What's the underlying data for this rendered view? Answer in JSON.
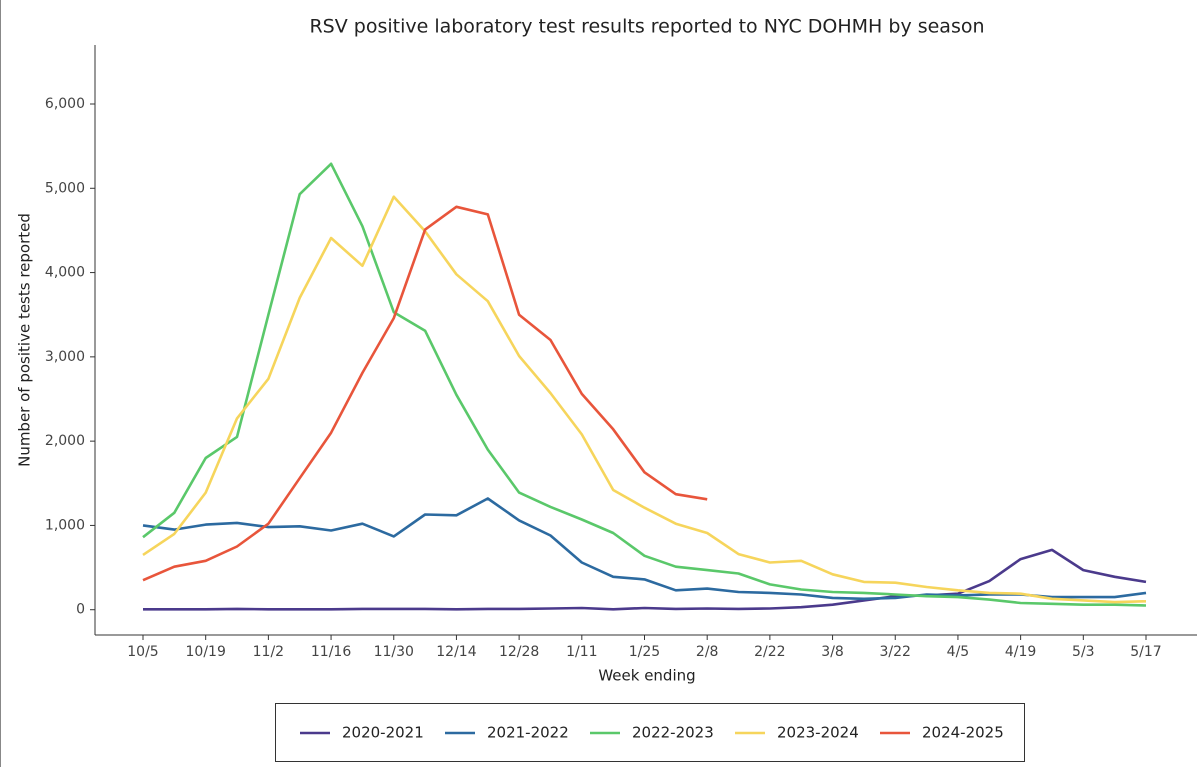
{
  "chart_data": {
    "type": "line",
    "title": "RSV positive laboratory test results reported to NYC DOHMH by season",
    "x_label": "Week ending",
    "y_label": "Number of positive tests reported",
    "categories": [
      "10/5",
      null,
      "10/19",
      null,
      "11/2",
      null,
      "11/16",
      null,
      "11/30",
      null,
      "12/14",
      null,
      "12/28",
      null,
      "1/11",
      null,
      "1/25",
      null,
      "2/8",
      null,
      "2/22",
      null,
      "3/8",
      null,
      "3/22",
      null,
      "4/5",
      null,
      "4/19",
      null,
      "5/3",
      null,
      "5/17"
    ],
    "ylim": [
      -300,
      6700
    ],
    "yticks": [
      0,
      {
        "value": 1000,
        "label": "1,000"
      },
      {
        "value": 2000,
        "label": "2,000"
      },
      {
        "value": 3000,
        "label": "3,000"
      },
      {
        "value": 4000,
        "label": "4,000"
      },
      {
        "value": 5000,
        "label": "5,000"
      },
      {
        "value": 6000,
        "label": "6,000"
      }
    ],
    "grid": false,
    "legend": "bottom",
    "series": [
      {
        "name": "2020-2021",
        "color": "#4b3a8c",
        "values": [
          5,
          5,
          5,
          10,
          5,
          5,
          5,
          10,
          10,
          10,
          5,
          10,
          10,
          15,
          20,
          5,
          20,
          10,
          15,
          10,
          15,
          30,
          60,
          110,
          160,
          170,
          190,
          340,
          600,
          710,
          470,
          390,
          330
        ]
      },
      {
        "name": "2021-2022",
        "color": "#2c6aa0",
        "values": [
          1000,
          950,
          1010,
          1030,
          980,
          990,
          940,
          1020,
          870,
          1130,
          1120,
          1320,
          1060,
          880,
          560,
          390,
          360,
          230,
          250,
          210,
          200,
          180,
          140,
          130,
          140,
          180,
          170,
          180,
          180,
          150,
          150,
          150,
          200
        ]
      },
      {
        "name": "2022-2023",
        "color": "#5ac86a",
        "values": [
          860,
          1150,
          1800,
          2050,
          3500,
          4930,
          5290,
          4550,
          3530,
          3310,
          2550,
          1900,
          1390,
          1220,
          1070,
          910,
          640,
          510,
          470,
          430,
          300,
          240,
          210,
          200,
          180,
          160,
          150,
          120,
          80,
          70,
          60,
          60,
          50
        ]
      },
      {
        "name": "2023-2024",
        "color": "#f6d55c",
        "values": [
          650,
          900,
          1390,
          2270,
          2740,
          3700,
          4410,
          4080,
          4900,
          4490,
          3980,
          3660,
          3010,
          2570,
          2080,
          1420,
          1210,
          1020,
          910,
          660,
          560,
          580,
          420,
          330,
          320,
          270,
          230,
          200,
          190,
          130,
          110,
          90,
          100
        ]
      },
      {
        "name": "2024-2025",
        "color": "#e8553b",
        "values": [
          350,
          510,
          580,
          750,
          1020,
          1560,
          2100,
          2810,
          3460,
          4510,
          4780,
          4690,
          3500,
          3200,
          2560,
          2140,
          1630,
          1370,
          1310,
          null,
          null,
          null,
          null,
          null,
          null,
          null,
          null,
          null,
          null,
          null,
          null,
          null,
          null
        ]
      }
    ]
  }
}
